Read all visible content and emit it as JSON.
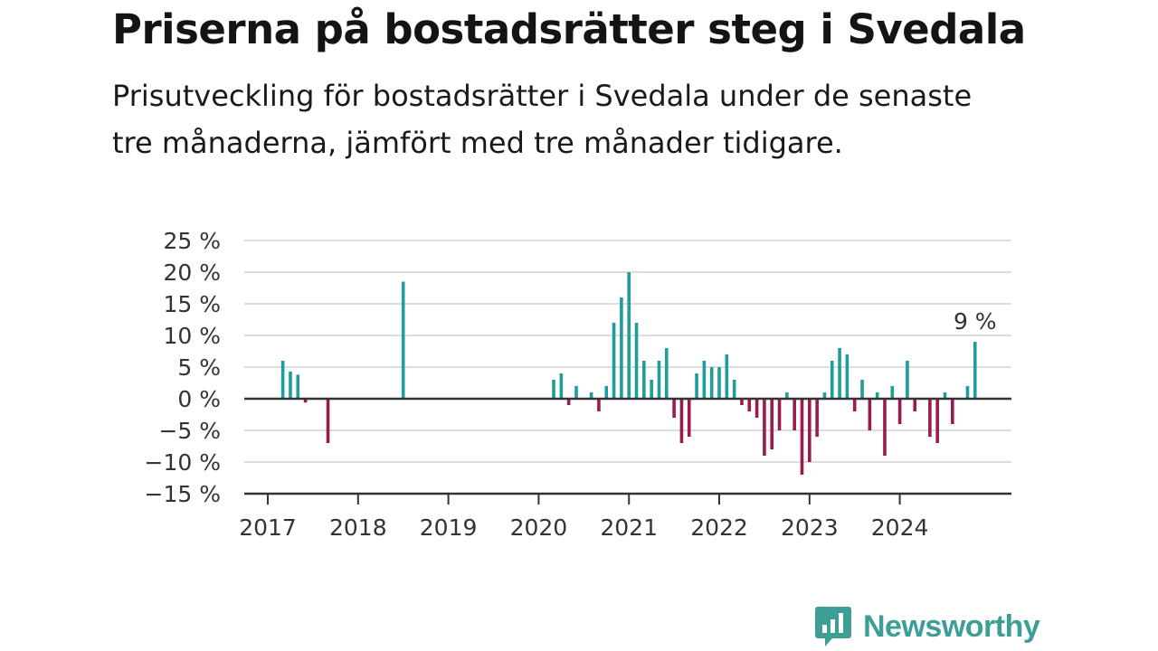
{
  "title": "Priserna på bostadsrätter steg i Svedala",
  "subtitle": "Prisutveckling för bostadsrätter i Svedala under de senaste tre månaderna, jämfört med tre månader tidigare.",
  "logo": {
    "text": "Newsworthy",
    "icon": "bar-chart-speech-bubble-icon",
    "color": "#3d9e95"
  },
  "colors": {
    "positive": "#1e9e9a",
    "negative": "#9b1b4f",
    "grid": "#dddddd",
    "zero": "#333333"
  },
  "chart_data": {
    "type": "bar",
    "ylim": [
      -15,
      25
    ],
    "y_ticks": [
      25,
      20,
      15,
      10,
      5,
      0,
      -5,
      -10,
      -15
    ],
    "y_tick_labels": [
      "25 %",
      "20 %",
      "15 %",
      "10 %",
      "5 %",
      "0 %",
      "−5 %",
      "−10 %",
      "−15 %"
    ],
    "x_tick_labels": [
      "2017",
      "2018",
      "2019",
      "2020",
      "2021",
      "2022",
      "2023",
      "2024"
    ],
    "grid": true,
    "annotation": {
      "text": "9 %",
      "x": "2024-11"
    },
    "series": [
      {
        "values": [
          {
            "x": "2017-03",
            "y": 6
          },
          {
            "x": "2017-04",
            "y": 4.3
          },
          {
            "x": "2017-05",
            "y": 3.8
          },
          {
            "x": "2017-06",
            "y": -0.6
          },
          {
            "x": "2017-09",
            "y": -7
          },
          {
            "x": "2018-07",
            "y": 18.5
          },
          {
            "x": "2020-03",
            "y": 3
          },
          {
            "x": "2020-04",
            "y": 4
          },
          {
            "x": "2020-05",
            "y": -1
          },
          {
            "x": "2020-06",
            "y": 2
          },
          {
            "x": "2020-08",
            "y": 1
          },
          {
            "x": "2020-09",
            "y": -2
          },
          {
            "x": "2020-10",
            "y": 2
          },
          {
            "x": "2020-11",
            "y": 12
          },
          {
            "x": "2020-12",
            "y": 16
          },
          {
            "x": "2021-01",
            "y": 20
          },
          {
            "x": "2021-02",
            "y": 12
          },
          {
            "x": "2021-03",
            "y": 6
          },
          {
            "x": "2021-04",
            "y": 3
          },
          {
            "x": "2021-05",
            "y": 6
          },
          {
            "x": "2021-06",
            "y": 8
          },
          {
            "x": "2021-07",
            "y": -3
          },
          {
            "x": "2021-08",
            "y": -7
          },
          {
            "x": "2021-09",
            "y": -6
          },
          {
            "x": "2021-10",
            "y": 4
          },
          {
            "x": "2021-11",
            "y": 6
          },
          {
            "x": "2021-12",
            "y": 5
          },
          {
            "x": "2022-01",
            "y": 5
          },
          {
            "x": "2022-02",
            "y": 7
          },
          {
            "x": "2022-03",
            "y": 3
          },
          {
            "x": "2022-04",
            "y": -1
          },
          {
            "x": "2022-05",
            "y": -2
          },
          {
            "x": "2022-06",
            "y": -3
          },
          {
            "x": "2022-07",
            "y": -9
          },
          {
            "x": "2022-08",
            "y": -8
          },
          {
            "x": "2022-09",
            "y": -5
          },
          {
            "x": "2022-10",
            "y": 1
          },
          {
            "x": "2022-11",
            "y": -5
          },
          {
            "x": "2022-12",
            "y": -12
          },
          {
            "x": "2023-01",
            "y": -10
          },
          {
            "x": "2023-02",
            "y": -6
          },
          {
            "x": "2023-03",
            "y": 1
          },
          {
            "x": "2023-04",
            "y": 6
          },
          {
            "x": "2023-05",
            "y": 8
          },
          {
            "x": "2023-06",
            "y": 7
          },
          {
            "x": "2023-07",
            "y": -2
          },
          {
            "x": "2023-08",
            "y": 3
          },
          {
            "x": "2023-09",
            "y": -5
          },
          {
            "x": "2023-10",
            "y": 1
          },
          {
            "x": "2023-11",
            "y": -9
          },
          {
            "x": "2023-12",
            "y": 2
          },
          {
            "x": "2024-01",
            "y": -4
          },
          {
            "x": "2024-02",
            "y": 6
          },
          {
            "x": "2024-03",
            "y": -2
          },
          {
            "x": "2024-05",
            "y": -6
          },
          {
            "x": "2024-06",
            "y": -7
          },
          {
            "x": "2024-07",
            "y": 1
          },
          {
            "x": "2024-08",
            "y": -4
          },
          {
            "x": "2024-10",
            "y": 2
          },
          {
            "x": "2024-11",
            "y": 9
          }
        ]
      }
    ]
  }
}
